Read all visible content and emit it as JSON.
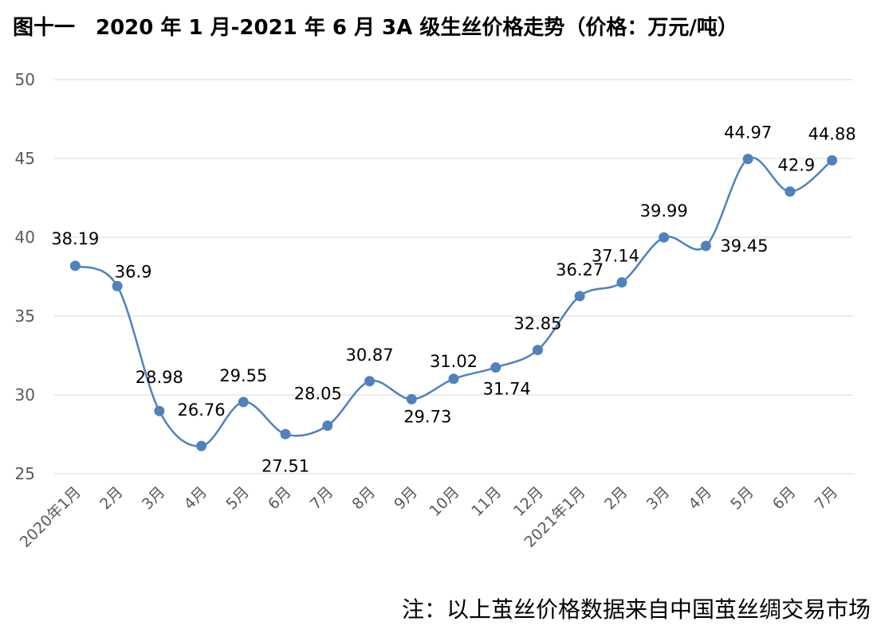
{
  "chart_data": {
    "type": "line",
    "title": "图十一　2020 年 1 月-2021 年 6 月 3A 级生丝价格走势（价格：万元/吨）",
    "xlabel": "",
    "ylabel": "",
    "categories": [
      "2020年1月",
      "2月",
      "3月",
      "4月",
      "5月",
      "6月",
      "7月",
      "8月",
      "9月",
      "10月",
      "11月",
      "12月",
      "2021年1月",
      "2月",
      "3月",
      "4月",
      "5月",
      "6月",
      "7月"
    ],
    "series": [
      {
        "values": [
          38.19,
          36.9,
          28.98,
          26.76,
          29.55,
          27.51,
          28.05,
          30.87,
          29.73,
          31.02,
          31.74,
          32.85,
          36.27,
          37.14,
          39.99,
          39.45,
          44.97,
          42.9,
          44.88
        ]
      }
    ],
    "data_labels": [
      "38.19",
      "36.9",
      "28.98",
      "26.76",
      "29.55",
      "27.51",
      "28.05",
      "30.87",
      "29.73",
      "31.02",
      "31.74",
      "32.85",
      "36.27",
      "37.14",
      "39.99",
      "39.45",
      "44.97",
      "42.9",
      "44.88"
    ],
    "ylim": [
      25,
      50
    ],
    "yticks": [
      25,
      30,
      35,
      40,
      45,
      50
    ],
    "grid": true,
    "legend": "none",
    "line_color": "#4f81bd",
    "note": "注：以上茧丝价格数据来自中国茧丝绸交易市场"
  }
}
